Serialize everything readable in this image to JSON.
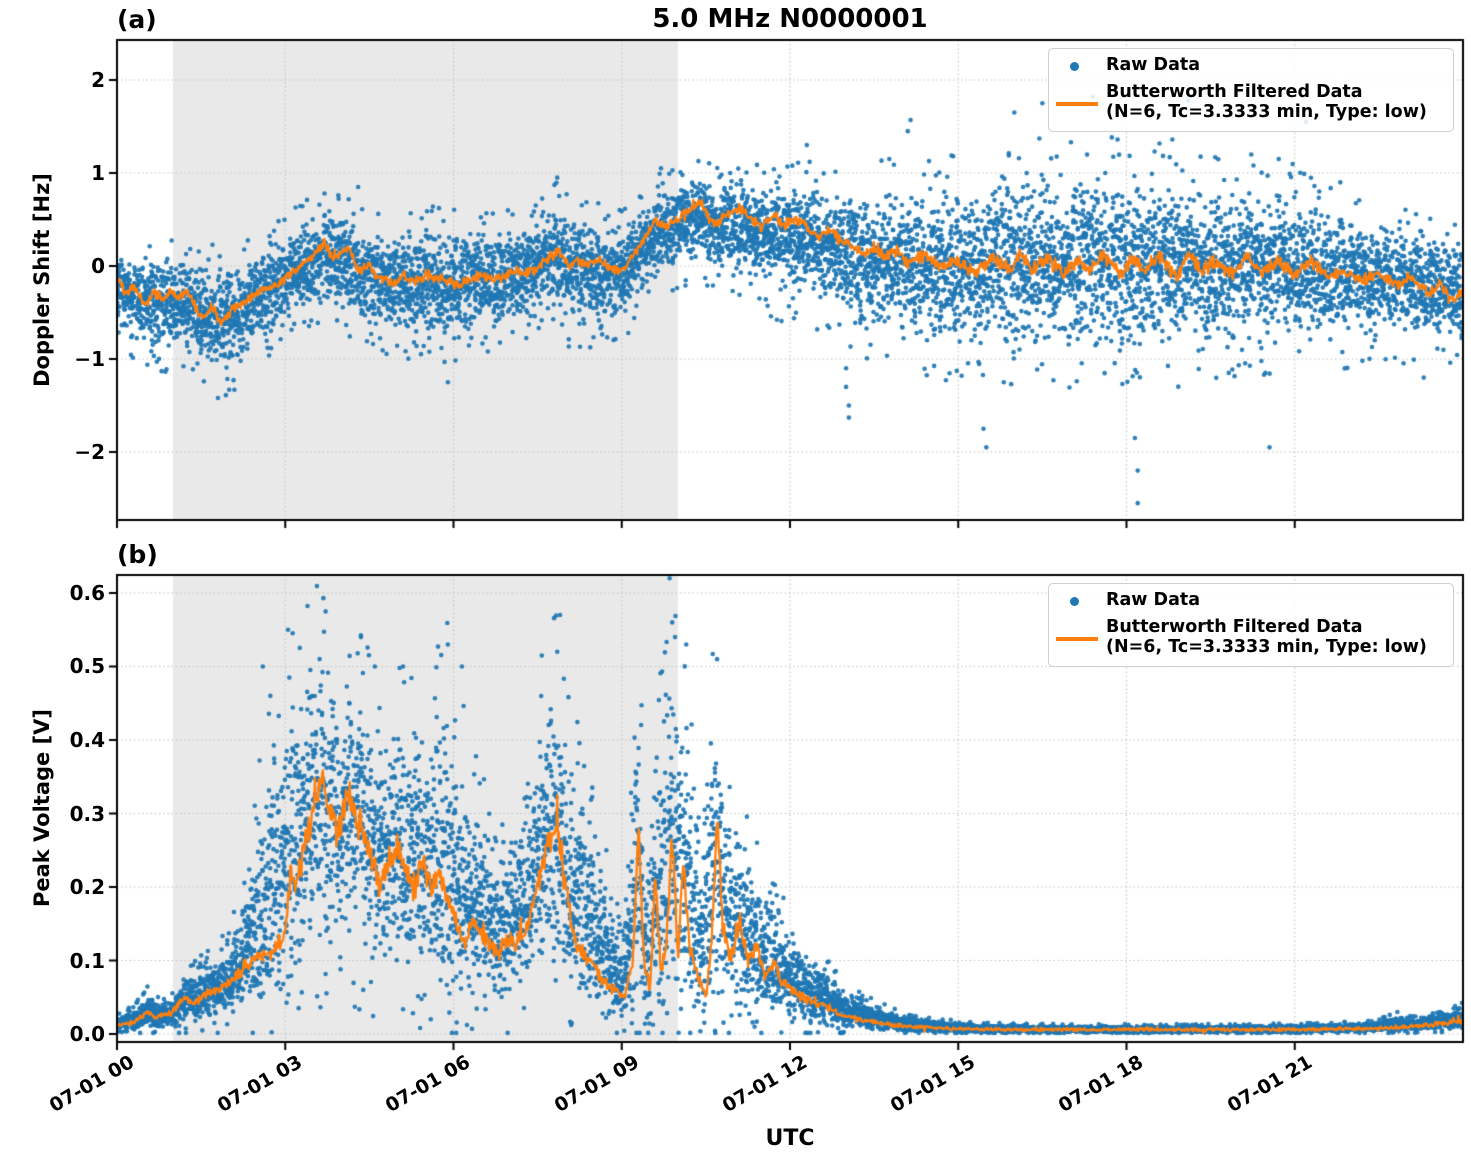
{
  "figure": {
    "title": "5.0 MHz N0000001",
    "xlabel": "UTC",
    "xtick_labels": [
      "07-01 00",
      "07-01 03",
      "07-01 06",
      "07-01 09",
      "07-01 12",
      "07-01 15",
      "07-01 18",
      "07-01 21"
    ]
  },
  "colors": {
    "raw": "#1f77b4",
    "filtered": "#ff7f0e",
    "shade": "#e9e9e9",
    "grid": "#c2c2c2",
    "spine": "#000000",
    "background": "#ffffff"
  },
  "legend": {
    "raw_label": "Raw Data",
    "filtered_label_line1": "Butterworth Filtered Data",
    "filtered_label_line2": "(N=6, Tc=3.3333 min, Type: low)"
  },
  "chart_data": [
    {
      "id": "a",
      "type": "scatter",
      "panel_label": "(a)",
      "ylabel": "Doppler Shift [Hz]",
      "ylim": [
        -2.73,
        2.43
      ],
      "yticks": [
        2,
        1,
        0,
        -1,
        -2
      ],
      "ytick_labels": [
        "2",
        "1",
        "0",
        "−1",
        "−2"
      ],
      "xlim_hours": [
        0,
        24
      ],
      "xticks_hours": [
        0,
        3,
        6,
        9,
        12,
        15,
        18,
        21
      ],
      "shade_hours": [
        1,
        10
      ],
      "grid": "dotted",
      "legend_position": "upper right",
      "series": {
        "filtered": {
          "x": [
            0,
            0.15,
            0.3,
            0.5,
            0.65,
            0.8,
            0.95,
            1.1,
            1.25,
            1.4,
            1.55,
            1.7,
            1.85,
            2,
            2.15,
            2.3,
            2.5,
            2.7,
            2.9,
            3.1,
            3.3,
            3.5,
            3.7,
            3.85,
            4,
            4.15,
            4.3,
            4.5,
            4.7,
            4.9,
            5.1,
            5.3,
            5.5,
            5.7,
            5.9,
            6.1,
            6.3,
            6.5,
            6.7,
            6.9,
            7.1,
            7.3,
            7.5,
            7.7,
            7.9,
            8.05,
            8.2,
            8.4,
            8.6,
            8.8,
            9,
            9.2,
            9.4,
            9.6,
            9.8,
            10,
            10.2,
            10.4,
            10.55,
            10.7,
            10.9,
            11.1,
            11.3,
            11.5,
            11.7,
            11.9,
            12.1,
            12.3,
            12.5,
            12.7,
            12.9,
            13.1,
            13.3,
            13.5,
            13.7,
            13.9,
            14.1,
            14.4,
            14.7,
            15,
            15.3,
            15.6,
            15.9,
            16.1,
            16.3,
            16.6,
            16.9,
            17.1,
            17.3,
            17.6,
            17.9,
            18.1,
            18.3,
            18.6,
            18.9,
            19.1,
            19.3,
            19.6,
            19.9,
            20.1,
            20.4,
            20.7,
            21,
            21.3,
            21.6,
            21.9,
            22.2,
            22.5,
            22.8,
            23.1,
            23.4,
            23.6,
            23.8,
            24
          ],
          "y": [
            -0.13,
            -0.3,
            -0.2,
            -0.42,
            -0.28,
            -0.35,
            -0.3,
            -0.33,
            -0.27,
            -0.45,
            -0.57,
            -0.45,
            -0.63,
            -0.5,
            -0.42,
            -0.38,
            -0.3,
            -0.25,
            -0.18,
            -0.08,
            0,
            0.1,
            0.25,
            0.08,
            0.14,
            0.2,
            -0.05,
            0,
            -0.12,
            -0.2,
            -0.1,
            -0.18,
            -0.1,
            -0.14,
            -0.16,
            -0.22,
            -0.12,
            -0.1,
            -0.16,
            -0.12,
            -0.04,
            -0.08,
            -0.02,
            0.1,
            0.16,
            0,
            0.07,
            0,
            0.07,
            -0.02,
            -0.05,
            0.1,
            0.3,
            0.48,
            0.42,
            0.52,
            0.6,
            0.7,
            0.52,
            0.45,
            0.58,
            0.62,
            0.5,
            0.42,
            0.55,
            0.45,
            0.5,
            0.42,
            0.3,
            0.38,
            0.28,
            0.22,
            0.12,
            0.2,
            0.1,
            0.18,
            0.05,
            0.12,
            0,
            0.05,
            -0.08,
            0.1,
            -0.05,
            0.15,
            -0.05,
            0.08,
            -0.1,
            0.05,
            -0.05,
            0.12,
            -0.08,
            0.08,
            -0.05,
            0.1,
            -0.12,
            0.15,
            -0.05,
            0.05,
            -0.1,
            0.1,
            -0.05,
            0.05,
            -0.1,
            0.05,
            -0.12,
            -0.05,
            -0.15,
            -0.08,
            -0.2,
            -0.12,
            -0.3,
            -0.2,
            -0.38,
            -0.25
          ]
        },
        "raw_band": {
          "x": [
            0,
            0.5,
            1,
            1.5,
            1.9,
            2.3,
            2.7,
            3.1,
            3.5,
            3.8,
            4.2,
            4.6,
            5,
            5.4,
            5.8,
            6.2,
            6.6,
            7,
            7.4,
            7.8,
            8.1,
            8.5,
            8.9,
            9.2,
            9.5,
            9.8,
            10.1,
            10.4,
            10.7,
            11,
            11.4,
            11.8,
            12.2,
            12.6,
            13,
            13.4,
            13.8,
            14.2,
            14.6,
            15,
            15.4,
            15.8,
            16.2,
            16.6,
            17,
            17.4,
            17.8,
            18.2,
            18.6,
            19,
            19.4,
            19.8,
            20.2,
            20.6,
            21,
            21.4,
            21.8,
            22.2,
            22.6,
            23,
            23.4,
            23.8,
            24
          ],
          "lo": [
            -0.75,
            -0.95,
            -1,
            -1.05,
            -1.25,
            -1.05,
            -0.85,
            -0.6,
            -0.5,
            -0.45,
            -0.6,
            -0.75,
            -0.85,
            -0.8,
            -1,
            -0.85,
            -0.8,
            -0.7,
            -0.6,
            -0.5,
            -0.7,
            -0.75,
            -0.7,
            -0.5,
            -0.3,
            -0.2,
            -0.1,
            0,
            -0.15,
            -0.2,
            -0.3,
            -0.4,
            -0.45,
            -0.55,
            -0.7,
            -0.8,
            -0.85,
            -0.9,
            -0.95,
            -1,
            -1,
            -1,
            -1.05,
            -1.05,
            -1,
            -1.05,
            -1.1,
            -1.05,
            -1,
            -1,
            -1,
            -0.95,
            -0.95,
            -0.9,
            -0.9,
            -0.9,
            -0.9,
            -0.85,
            -0.85,
            -0.85,
            -0.85,
            -0.9,
            -0.9
          ],
          "hi": [
            0.12,
            0.12,
            0.15,
            0.1,
            0.05,
            0.15,
            0.3,
            0.45,
            0.6,
            0.7,
            0.55,
            0.4,
            0.4,
            0.5,
            0.45,
            0.4,
            0.45,
            0.5,
            0.5,
            0.75,
            0.6,
            0.5,
            0.45,
            0.55,
            0.75,
            0.9,
            0.95,
            1.05,
            0.9,
            1,
            0.95,
            0.95,
            0.9,
            0.85,
            0.8,
            0.85,
            0.9,
            1,
            0.95,
            0.9,
            1,
            1.1,
            1.1,
            1.15,
            1.1,
            1.15,
            1.1,
            1.05,
            1.1,
            1.05,
            1,
            1,
            0.95,
            0.9,
            0.85,
            0.8,
            0.7,
            0.6,
            0.55,
            0.5,
            0.45,
            0.4,
            0.35
          ]
        },
        "raw_outliers": [
          [
            1.8,
            -1.42
          ],
          [
            2.0,
            -1.33
          ],
          [
            3.7,
            0.78
          ],
          [
            4.3,
            0.85
          ],
          [
            5.9,
            -1.25
          ],
          [
            7.85,
            0.95
          ],
          [
            9.7,
            1.05
          ],
          [
            12.3,
            1.3
          ],
          [
            12.35,
            1.12
          ],
          [
            13,
            -1.1
          ],
          [
            13,
            -1.3
          ],
          [
            13.05,
            -1.5
          ],
          [
            13.05,
            -1.63
          ],
          [
            14.1,
            1.45
          ],
          [
            14.15,
            1.57
          ],
          [
            15.45,
            -1.75
          ],
          [
            15.5,
            -1.95
          ],
          [
            16,
            1.65
          ],
          [
            16.5,
            1.75
          ],
          [
            17.4,
            1.82
          ],
          [
            18.15,
            -1.85
          ],
          [
            18.2,
            -2.2
          ],
          [
            18.2,
            -2.55
          ],
          [
            19.1,
            1.78
          ],
          [
            20,
            1.62
          ],
          [
            20.55,
            -1.95
          ],
          [
            21.2,
            1.55
          ],
          [
            23.3,
            -1.2
          ]
        ]
      }
    },
    {
      "id": "b",
      "type": "scatter",
      "panel_label": "(b)",
      "ylabel": "Peak Voltage [V]",
      "ylim": [
        -0.011,
        0.624
      ],
      "yticks": [
        0.6,
        0.5,
        0.4,
        0.3,
        0.2,
        0.1,
        0.0
      ],
      "ytick_labels": [
        "0.6",
        "0.5",
        "0.4",
        "0.3",
        "0.2",
        "0.1",
        "0.0"
      ],
      "xlim_hours": [
        0,
        24
      ],
      "xticks_hours": [
        0,
        3,
        6,
        9,
        12,
        15,
        18,
        21
      ],
      "shade_hours": [
        1,
        10
      ],
      "grid": "dotted",
      "legend_position": "upper right",
      "series": {
        "filtered": {
          "x": [
            0,
            0.3,
            0.55,
            0.7,
            1,
            1.2,
            1.35,
            1.6,
            1.8,
            2,
            2.2,
            2.4,
            2.6,
            2.8,
            3,
            3.1,
            3.2,
            3.35,
            3.5,
            3.65,
            3.8,
            3.95,
            4.1,
            4.25,
            4.4,
            4.55,
            4.7,
            4.85,
            5,
            5.15,
            5.3,
            5.45,
            5.6,
            5.75,
            5.9,
            6.05,
            6.2,
            6.35,
            6.5,
            6.65,
            6.8,
            6.95,
            7.1,
            7.25,
            7.4,
            7.55,
            7.7,
            7.85,
            8,
            8.15,
            8.3,
            8.45,
            8.6,
            8.75,
            8.9,
            9.05,
            9.2,
            9.3,
            9.4,
            9.5,
            9.6,
            9.7,
            9.8,
            9.9,
            10,
            10.1,
            10.2,
            10.35,
            10.5,
            10.6,
            10.7,
            10.8,
            10.95,
            11.1,
            11.25,
            11.4,
            11.55,
            11.7,
            11.85,
            12,
            12.2,
            12.4,
            12.6,
            12.8,
            13,
            13.3,
            13.6,
            14,
            14.5,
            15,
            16,
            17,
            18,
            19,
            20,
            21,
            22,
            22.5,
            23,
            23.3,
            23.6,
            24
          ],
          "y": [
            0.012,
            0.016,
            0.03,
            0.022,
            0.03,
            0.05,
            0.04,
            0.055,
            0.06,
            0.07,
            0.085,
            0.1,
            0.11,
            0.11,
            0.14,
            0.22,
            0.2,
            0.26,
            0.31,
            0.35,
            0.3,
            0.28,
            0.33,
            0.3,
            0.27,
            0.24,
            0.2,
            0.24,
            0.26,
            0.22,
            0.2,
            0.24,
            0.2,
            0.22,
            0.18,
            0.15,
            0.12,
            0.15,
            0.13,
            0.12,
            0.11,
            0.13,
            0.12,
            0.14,
            0.17,
            0.22,
            0.26,
            0.28,
            0.2,
            0.13,
            0.11,
            0.1,
            0.08,
            0.065,
            0.06,
            0.05,
            0.1,
            0.27,
            0.1,
            0.06,
            0.2,
            0.09,
            0.12,
            0.28,
            0.1,
            0.24,
            0.12,
            0.08,
            0.05,
            0.12,
            0.3,
            0.15,
            0.1,
            0.16,
            0.1,
            0.12,
            0.08,
            0.1,
            0.07,
            0.06,
            0.05,
            0.045,
            0.04,
            0.03,
            0.025,
            0.02,
            0.015,
            0.011,
            0.009,
            0.007,
            0.006,
            0.006,
            0.006,
            0.006,
            0.006,
            0.006,
            0.007,
            0.008,
            0.01,
            0.012,
            0.014,
            0.018
          ]
        },
        "raw_band": {
          "x": [
            0,
            0.3,
            0.55,
            0.8,
            1,
            1.3,
            1.6,
            1.9,
            2.2,
            2.5,
            2.8,
            3,
            3.3,
            3.6,
            3.8,
            4,
            4.2,
            4.5,
            4.8,
            5.1,
            5.4,
            5.7,
            5.9,
            6.1,
            6.3,
            6.6,
            6.9,
            7.2,
            7.5,
            7.8,
            8,
            8.2,
            8.5,
            8.8,
            9,
            9.25,
            9.45,
            9.65,
            9.85,
            10.05,
            10.25,
            10.45,
            10.65,
            10.85,
            11.05,
            11.3,
            11.55,
            11.8,
            12.05,
            12.3,
            12.6,
            12.9,
            13.2,
            13.5,
            13.8,
            14.2,
            14.6,
            15,
            15.5,
            16,
            17,
            18,
            19,
            20,
            21,
            22,
            22.5,
            22.8,
            23.1,
            23.5,
            24
          ],
          "lo": [
            0.004,
            0.005,
            0.006,
            0.006,
            0.008,
            0.01,
            0.012,
            0.015,
            0.02,
            0.03,
            0.04,
            0.05,
            0.08,
            0.1,
            0.1,
            0.1,
            0.1,
            0.08,
            0.07,
            0.06,
            0.06,
            0.05,
            0.05,
            0.04,
            0.04,
            0.035,
            0.03,
            0.04,
            0.05,
            0.05,
            0.04,
            0.035,
            0.03,
            0.02,
            0.015,
            0.02,
            0.02,
            0.02,
            0.02,
            0.02,
            0.02,
            0.015,
            0.02,
            0.02,
            0.015,
            0.015,
            0.012,
            0.01,
            0.01,
            0.008,
            0.007,
            0.005,
            0.004,
            0.003,
            0.002,
            0.002,
            0.001,
            0.001,
            0.001,
            0.001,
            0.001,
            0.001,
            0.001,
            0.001,
            0.001,
            0.002,
            0.002,
            0.003,
            0.003,
            0.005,
            0.008
          ],
          "hi": [
            0.025,
            0.035,
            0.06,
            0.045,
            0.05,
            0.09,
            0.1,
            0.12,
            0.17,
            0.33,
            0.45,
            0.5,
            0.52,
            0.55,
            0.52,
            0.48,
            0.52,
            0.46,
            0.42,
            0.47,
            0.44,
            0.48,
            0.5,
            0.42,
            0.36,
            0.3,
            0.28,
            0.34,
            0.44,
            0.55,
            0.45,
            0.38,
            0.3,
            0.2,
            0.13,
            0.5,
            0.3,
            0.45,
            0.55,
            0.54,
            0.4,
            0.25,
            0.51,
            0.35,
            0.3,
            0.26,
            0.22,
            0.18,
            0.15,
            0.12,
            0.1,
            0.075,
            0.055,
            0.042,
            0.032,
            0.024,
            0.02,
            0.016,
            0.014,
            0.013,
            0.012,
            0.012,
            0.012,
            0.012,
            0.013,
            0.015,
            0.018,
            0.028,
            0.022,
            0.028,
            0.04
          ]
        },
        "raw_outliers": [
          [
            2.6,
            0.5
          ],
          [
            3.05,
            0.55
          ],
          [
            3.68,
            0.593
          ],
          [
            3.72,
            0.575
          ],
          [
            4.35,
            0.54
          ],
          [
            5.1,
            0.5
          ],
          [
            5.9,
            0.53
          ],
          [
            6.15,
            0.5
          ],
          [
            7.85,
            0.52
          ],
          [
            7.9,
            0.57
          ],
          [
            9.9,
            0.56
          ],
          [
            9.95,
            0.54
          ],
          [
            10.15,
            0.53
          ],
          [
            10.7,
            0.51
          ]
        ]
      }
    }
  ]
}
